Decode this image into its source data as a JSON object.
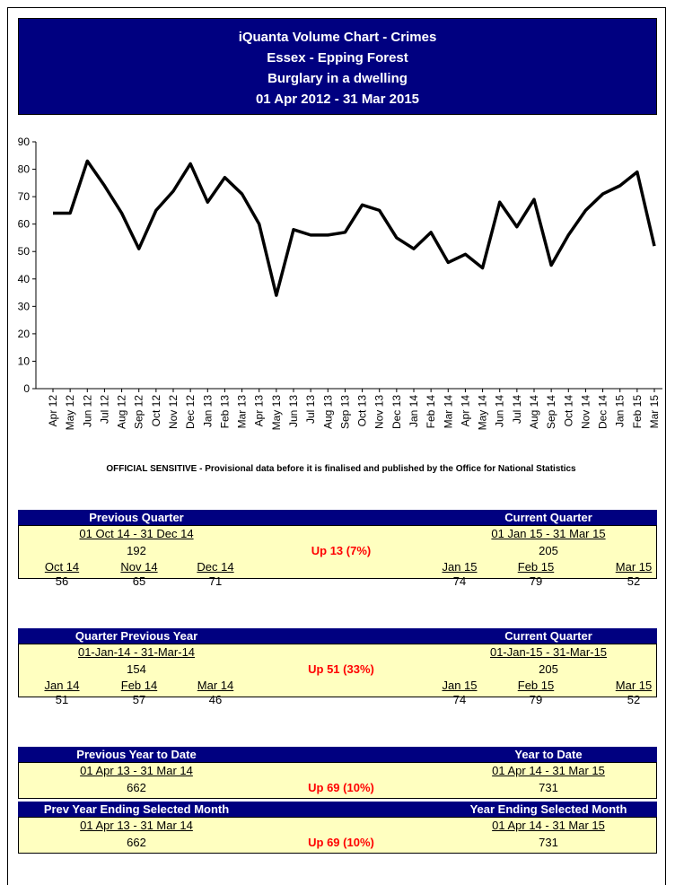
{
  "header": {
    "lines": [
      "iQuanta Volume Chart - Crimes",
      "Essex - Epping Forest",
      "Burglary in a dwelling",
      "01 Apr 2012 - 31 Mar 2015"
    ]
  },
  "chart_data": {
    "type": "line",
    "categories": [
      "Apr 12",
      "May 12",
      "Jun 12",
      "Jul 12",
      "Aug 12",
      "Sep 12",
      "Oct 12",
      "Nov 12",
      "Dec 12",
      "Jan 13",
      "Feb 13",
      "Mar 13",
      "Apr 13",
      "May 13",
      "Jun 13",
      "Jul 13",
      "Aug 13",
      "Sep 13",
      "Oct 13",
      "Nov 13",
      "Dec 13",
      "Jan 14",
      "Feb 14",
      "Mar 14",
      "Apr 14",
      "May 14",
      "Jun 14",
      "Jul 14",
      "Aug 14",
      "Sep 14",
      "Oct 14",
      "Nov 14",
      "Dec 14",
      "Jan 15",
      "Feb 15",
      "Mar 15"
    ],
    "values": [
      64,
      64,
      83,
      74,
      64,
      51,
      65,
      72,
      82,
      68,
      77,
      71,
      60,
      34,
      58,
      56,
      56,
      57,
      67,
      65,
      55,
      51,
      57,
      46,
      49,
      44,
      68,
      59,
      69,
      45,
      56,
      65,
      71,
      74,
      79,
      52
    ],
    "color": "#000000",
    "ylim": [
      0,
      90
    ],
    "yticks": [
      0,
      10,
      20,
      30,
      40,
      50,
      60,
      70,
      80,
      90
    ]
  },
  "note": "OFFICIAL  SENSITIVE  - Provisional data before it is finalised and published by the Office for National Statistics",
  "panels": [
    {
      "left_title": "Previous Quarter",
      "right_title": "Current Quarter",
      "left_period": "01 Oct 14 - 31 Dec 14",
      "right_period": "01 Jan 15 - 31 Mar 15",
      "left_total": 192,
      "right_total": 205,
      "change": "Up 13 (7%)",
      "left_months": [
        {
          "label": "Oct 14",
          "value": 56
        },
        {
          "label": "Nov 14",
          "value": 65
        },
        {
          "label": "Dec 14",
          "value": 71
        }
      ],
      "right_months": [
        {
          "label": "Jan 15",
          "value": 74
        },
        {
          "label": "Feb 15",
          "value": 79
        },
        {
          "label": "Mar 15",
          "value": 52
        }
      ]
    },
    {
      "left_title": "Quarter Previous Year",
      "right_title": "Current Quarter",
      "left_period": "01-Jan-14 - 31-Mar-14",
      "right_period": "01-Jan-15 - 31-Mar-15",
      "left_total": 154,
      "right_total": 205,
      "change": "Up 51 (33%)",
      "left_months": [
        {
          "label": "Jan 14",
          "value": 51
        },
        {
          "label": "Feb 14",
          "value": 57
        },
        {
          "label": "Mar 14",
          "value": 46
        }
      ],
      "right_months": [
        {
          "label": "Jan 15",
          "value": 74
        },
        {
          "label": "Feb 15",
          "value": 79
        },
        {
          "label": "Mar 15",
          "value": 52
        }
      ]
    },
    {
      "left_title": "Previous Year to Date",
      "right_title": "Year to Date",
      "left_period": "01 Apr 13 - 31 Mar 14",
      "right_period": "01 Apr 14 - 31 Mar 15",
      "left_total": 662,
      "right_total": 731,
      "change": "Up 69 (10%)"
    },
    {
      "left_title": "Prev Year Ending Selected Month",
      "right_title": "Year Ending Selected Month",
      "left_period": "01 Apr 13 - 31 Mar 14",
      "right_period": "01 Apr 14 - 31 Mar 15",
      "left_total": 662,
      "right_total": 731,
      "change": "Up 69 (10%)"
    }
  ]
}
